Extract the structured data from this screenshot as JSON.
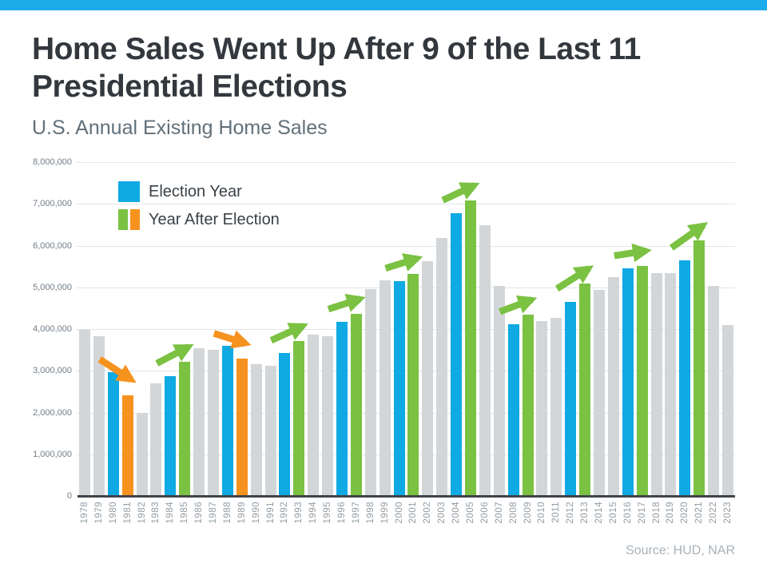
{
  "page": {
    "title_line1": "Home Sales Went Up After 9 of the Last 11",
    "title_line2": "Presidential Elections",
    "subtitle": "U.S. Annual Existing Home Sales",
    "source": "Source: HUD, NAR"
  },
  "legend": {
    "election_label": "Election Year",
    "after_label": "Year After Election"
  },
  "colors": {
    "accent_strip": "#1CACEA",
    "election_bar": "#0FA9E3",
    "after_up_bar": "#7BC142",
    "after_down_bar": "#F6921E",
    "other_bar": "#D2D6D9",
    "gridline": "#E2E5E7",
    "axis_line": "#3F444A"
  },
  "chart_data": {
    "type": "bar",
    "title": "U.S. Annual Existing Home Sales",
    "xlabel": "",
    "ylabel": "",
    "ylim": [
      0,
      8000000
    ],
    "grid": true,
    "legend_position": "top-left",
    "y_tick_labels": [
      "0",
      "1,000,000",
      "2,000,000",
      "3,000,000",
      "4,000,000",
      "5,000,000",
      "6,000,000",
      "7,000,000",
      "8,000,000"
    ],
    "categories": [
      "1978",
      "1979",
      "1980",
      "1981",
      "1982",
      "1983",
      "1984",
      "1985",
      "1986",
      "1987",
      "1988",
      "1989",
      "1990",
      "1991",
      "1992",
      "1993",
      "1994",
      "1995",
      "1996",
      "1997",
      "1998",
      "1999",
      "2000",
      "2001",
      "2002",
      "2003",
      "2004",
      "2005",
      "2006",
      "2007",
      "2008",
      "2009",
      "2010",
      "2011",
      "2012",
      "2013",
      "2014",
      "2015",
      "2016",
      "2017",
      "2018",
      "2019",
      "2020",
      "2021",
      "2022",
      "2023"
    ],
    "values": [
      3990000,
      3830000,
      2970000,
      2420000,
      2000000,
      2700000,
      2870000,
      3210000,
      3550000,
      3500000,
      3590000,
      3290000,
      3150000,
      3120000,
      3420000,
      3710000,
      3870000,
      3830000,
      4170000,
      4360000,
      4960000,
      5170000,
      5150000,
      5330000,
      5630000,
      6180000,
      6780000,
      7080000,
      6480000,
      5030000,
      4110000,
      4340000,
      4190000,
      4260000,
      4660000,
      5090000,
      4940000,
      5250000,
      5450000,
      5510000,
      5340000,
      5340000,
      5640000,
      6120000,
      5030000,
      4090000
    ],
    "bar_roles": [
      "other",
      "other",
      "election",
      "after_down",
      "other",
      "other",
      "election",
      "after_up",
      "other",
      "other",
      "election",
      "after_down",
      "other",
      "other",
      "election",
      "after_up",
      "other",
      "other",
      "election",
      "after_up",
      "other",
      "other",
      "election",
      "after_up",
      "other",
      "other",
      "election",
      "after_up",
      "other",
      "other",
      "election",
      "after_up",
      "other",
      "other",
      "election",
      "after_up",
      "other",
      "other",
      "election",
      "after_up",
      "other",
      "other",
      "election",
      "after_up",
      "other",
      "other"
    ],
    "arrows": [
      {
        "from": 1980,
        "to": 1981,
        "trend": "down"
      },
      {
        "from": 1984,
        "to": 1985,
        "trend": "up"
      },
      {
        "from": 1988,
        "to": 1989,
        "trend": "down"
      },
      {
        "from": 1992,
        "to": 1993,
        "trend": "up"
      },
      {
        "from": 1996,
        "to": 1997,
        "trend": "up"
      },
      {
        "from": 2000,
        "to": 2001,
        "trend": "up"
      },
      {
        "from": 2004,
        "to": 2005,
        "trend": "up"
      },
      {
        "from": 2008,
        "to": 2009,
        "trend": "up"
      },
      {
        "from": 2012,
        "to": 2013,
        "trend": "up"
      },
      {
        "from": 2016,
        "to": 2017,
        "trend": "up"
      },
      {
        "from": 2020,
        "to": 2021,
        "trend": "up"
      }
    ]
  }
}
